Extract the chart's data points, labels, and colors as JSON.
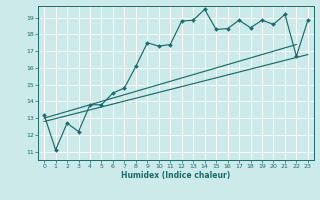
{
  "title": "",
  "xlabel": "Humidex (Indice chaleur)",
  "bg_color": "#cceaea",
  "grid_color": "#ffffff",
  "line_color": "#1a6b6b",
  "xlim": [
    -0.5,
    23.5
  ],
  "ylim": [
    10.5,
    19.7
  ],
  "xticks": [
    0,
    1,
    2,
    3,
    4,
    5,
    6,
    7,
    8,
    9,
    10,
    11,
    12,
    13,
    14,
    15,
    16,
    17,
    18,
    19,
    20,
    21,
    22,
    23
  ],
  "yticks": [
    11,
    12,
    13,
    14,
    15,
    16,
    17,
    18,
    19
  ],
  "line1_x": [
    0,
    1,
    2,
    3,
    4,
    5,
    6,
    7,
    8,
    9,
    10,
    11,
    12,
    13,
    14,
    15,
    16,
    17,
    18,
    19,
    20,
    21,
    22,
    23
  ],
  "line1_y": [
    13.2,
    11.1,
    12.7,
    12.2,
    13.8,
    13.8,
    14.5,
    14.8,
    16.1,
    17.5,
    17.3,
    17.4,
    18.8,
    18.85,
    19.5,
    18.3,
    18.35,
    18.85,
    18.4,
    18.85,
    18.6,
    19.2,
    16.7,
    18.85
  ],
  "trend1_x": [
    0,
    23
  ],
  "trend1_y": [
    12.8,
    16.8
  ],
  "trend2_x": [
    0,
    22
  ],
  "trend2_y": [
    13.0,
    17.4
  ]
}
